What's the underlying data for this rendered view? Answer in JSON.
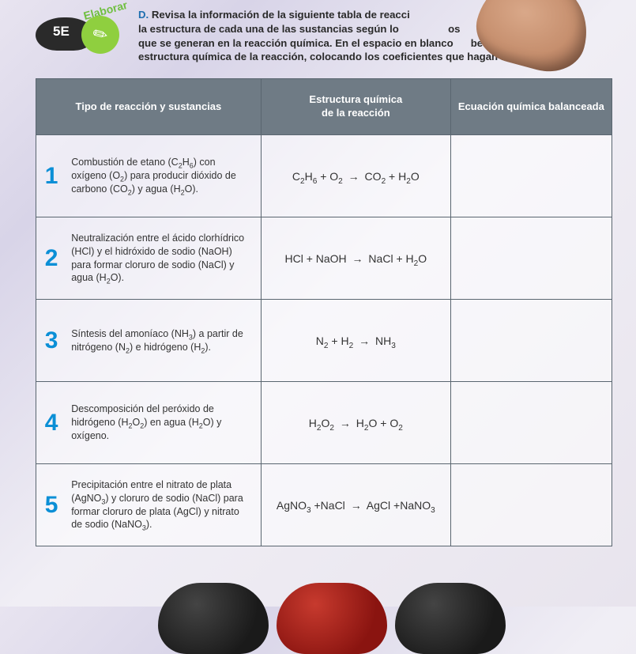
{
  "badge": {
    "arc_text": "Elaborar",
    "code": "5E"
  },
  "instruction": {
    "letter": "D.",
    "line1_bold": "Revisa la información de la siguiente tabla de reacci",
    "line2a": "la estructura de cada una de las sustancias según lo",
    "line2b": "os",
    "line3a": "que se generan en la reacción química. En el espacio en blanco",
    "line3b": "be la",
    "line4": "estructura química de la reacción, colocando los coeficientes que hagan falta."
  },
  "table": {
    "headers": {
      "col1": "Tipo de reacción y sustancias",
      "col2_l1": "Estructura química",
      "col2_l2": "de la reacción",
      "col3": "Ecuación química balanceada"
    },
    "rows": [
      {
        "n": "1",
        "desc_html": "Combustión de etano (C<sub>2</sub>H<sub>6</sub>) con oxígeno (O<sub>2</sub>) para producir dióxido de carbono (CO<sub>2</sub>) y agua (H<sub>2</sub>O).",
        "eq_html": "C<sub>2</sub>H<sub>6</sub> + O<sub>2</sub> <span class=\"arrow\">→</span> CO<sub>2</sub> + H<sub>2</sub>O"
      },
      {
        "n": "2",
        "desc_html": "Neutralización entre el ácido clorhídrico (HCl) y el hidróxido de sodio (NaOH) para formar cloruro de sodio (NaCl) y agua (H<sub>2</sub>O).",
        "eq_html": "HCl + NaOH <span class=\"arrow\">→</span> NaCl + H<sub>2</sub>O"
      },
      {
        "n": "3",
        "desc_html": "Síntesis del amoníaco (NH<sub>3</sub>) a partir de nitrógeno (N<sub>2</sub>) e hidrógeno (H<sub>2</sub>).",
        "eq_html": "N<sub>2</sub> + H<sub>2</sub> <span class=\"arrow\">→</span> NH<sub>3</sub>"
      },
      {
        "n": "4",
        "desc_html": "Descomposición del peróxido de hidrógeno (H<sub>2</sub>O<sub>2</sub>) en agua (H<sub>2</sub>O) y oxígeno.",
        "eq_html": "H<sub>2</sub>O<sub>2</sub> <span class=\"arrow\">→</span> H<sub>2</sub>O + O<sub>2</sub>"
      },
      {
        "n": "5",
        "desc_html": "Precipitación entre el nitrato de plata (AgNO<sub>3</sub>) y cloruro de sodio (NaCl) para formar cloruro de plata (AgCl) y nitrato de sodio (NaNO<sub>3</sub>).",
        "eq_html": "AgNO<sub>3</sub> +NaCl <span class=\"arrow\">→</span> AgCl +NaNO<sub>3</sub>"
      }
    ]
  },
  "colors": {
    "header_bg": "#6f7b85",
    "number": "#0b8fd6",
    "badge_green": "#8fcf3f",
    "blob_red": "#8a1410",
    "blob_dark": "#1a1a1a"
  }
}
